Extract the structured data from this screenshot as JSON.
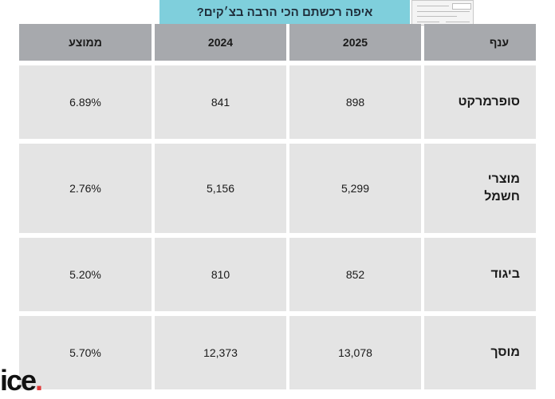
{
  "title": "איפה רכשתם הכי הרבה בצ׳קים?",
  "logo": {
    "text": "ice",
    "dot": ".",
    "dot_color": "#e03a3a"
  },
  "decoration": {
    "image": "cheque-illustration-icon"
  },
  "colors": {
    "title_bg": "#7fcfdc",
    "header_bg": "#a7a9ad",
    "cell_bg": "#e4e4e4"
  },
  "chart_data": {
    "type": "table",
    "columns": [
      "ענף",
      "2025",
      "2024",
      "ממוצע"
    ],
    "rows": [
      {
        "branch": "סופרמרקט",
        "v2025": "898",
        "v2024": "841",
        "avg": "6.89%"
      },
      {
        "branch": "מוצרי\nחשמל",
        "v2025": "5,299",
        "v2024": "5,156",
        "avg": "2.76%"
      },
      {
        "branch": "ביגוד",
        "v2025": "852",
        "v2024": "810",
        "avg": "5.20%"
      },
      {
        "branch": "מוסך",
        "v2025": "13,078",
        "v2024": "12,373",
        "avg": "5.70%"
      }
    ]
  }
}
